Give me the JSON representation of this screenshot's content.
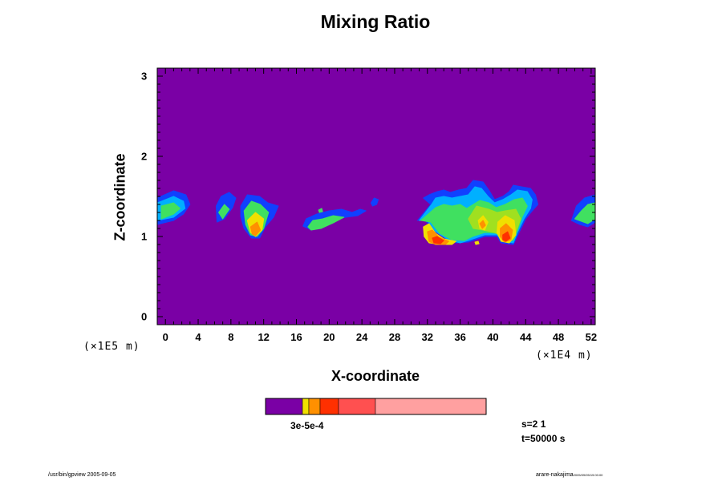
{
  "chart_data": {
    "type": "heatmap",
    "title": "Mixing Ratio",
    "xlabel": "X-coordinate",
    "ylabel": "Z-coordinate",
    "x_ticks": [
      "0",
      "4",
      "8",
      "12",
      "16",
      "20",
      "24",
      "28",
      "32",
      "36",
      "40",
      "44",
      "48",
      "52"
    ],
    "y_ticks": [
      "0",
      "1",
      "2",
      "3"
    ],
    "x_factor": "(×1E4 m)",
    "y_factor": "(×1E5 m)",
    "xlim": [
      -1,
      52.5
    ],
    "ylim": [
      -0.1,
      3.1
    ],
    "background_color": "#7a00a5",
    "colormap": [
      "#7a00a5",
      "#1040ff",
      "#00b0ff",
      "#00e0c0",
      "#40e060",
      "#a0e020",
      "#f0e000",
      "#ff9000",
      "#ff3000",
      "#ff5050",
      "#ffa0a0"
    ],
    "legend_colors": [
      "#7a00a5",
      "#f0e000",
      "#ff9000",
      "#ff3000",
      "#ff5050",
      "#ffa0a0"
    ],
    "legend_label": "3e-5e-4",
    "contours": [
      {
        "level": 1,
        "color": "#1040ff",
        "polygon": [
          [
            -1.0,
            1.48
          ],
          [
            1.0,
            1.57
          ],
          [
            2.5,
            1.52
          ],
          [
            3.0,
            1.4
          ],
          [
            2.2,
            1.28
          ],
          [
            1.0,
            1.2
          ],
          [
            -1.0,
            1.15
          ]
        ]
      },
      {
        "level": 2,
        "color": "#00b0ff",
        "polygon": [
          [
            -1.0,
            1.42
          ],
          [
            1.0,
            1.5
          ],
          [
            2.2,
            1.44
          ],
          [
            2.4,
            1.35
          ],
          [
            1.0,
            1.24
          ],
          [
            -1.0,
            1.2
          ]
        ]
      },
      {
        "level": 3,
        "color": "#40e060",
        "polygon": [
          [
            -0.5,
            1.38
          ],
          [
            1.0,
            1.42
          ],
          [
            1.8,
            1.35
          ],
          [
            1.0,
            1.28
          ],
          [
            -0.5,
            1.22
          ]
        ]
      },
      {
        "level": 1,
        "color": "#1040ff",
        "polygon": [
          [
            6.2,
            1.38
          ],
          [
            6.8,
            1.5
          ],
          [
            7.8,
            1.55
          ],
          [
            8.6,
            1.48
          ],
          [
            8.2,
            1.36
          ],
          [
            7.2,
            1.22
          ],
          [
            6.3,
            1.18
          ]
        ]
      },
      {
        "level": 3,
        "color": "#40e060",
        "polygon": [
          [
            6.5,
            1.3
          ],
          [
            7.2,
            1.4
          ],
          [
            7.8,
            1.34
          ],
          [
            7.0,
            1.22
          ]
        ]
      },
      {
        "level": 1,
        "color": "#1040ff",
        "polygon": [
          [
            9.2,
            1.38
          ],
          [
            10.0,
            1.52
          ],
          [
            11.5,
            1.5
          ],
          [
            12.5,
            1.42
          ],
          [
            13.8,
            1.38
          ],
          [
            13.2,
            1.24
          ],
          [
            12.2,
            1.12
          ],
          [
            11.5,
            0.98
          ],
          [
            10.5,
            0.98
          ],
          [
            9.6,
            1.1
          ],
          [
            9.2,
            1.25
          ]
        ]
      },
      {
        "level": 3,
        "color": "#40e060",
        "polygon": [
          [
            9.6,
            1.32
          ],
          [
            10.5,
            1.44
          ],
          [
            11.6,
            1.4
          ],
          [
            12.6,
            1.3
          ],
          [
            12.0,
            1.1
          ],
          [
            11.2,
            1.0
          ],
          [
            10.4,
            1.02
          ],
          [
            9.8,
            1.15
          ]
        ]
      },
      {
        "level": 5,
        "color": "#f0e000",
        "polygon": [
          [
            10.0,
            1.2
          ],
          [
            11.0,
            1.3
          ],
          [
            12.0,
            1.22
          ],
          [
            11.8,
            1.08
          ],
          [
            11.0,
            1.0
          ],
          [
            10.4,
            1.05
          ]
        ]
      },
      {
        "level": 6,
        "color": "#ff9000",
        "polygon": [
          [
            10.4,
            1.12
          ],
          [
            11.2,
            1.18
          ],
          [
            11.6,
            1.08
          ],
          [
            11.0,
            1.01
          ],
          [
            10.6,
            1.03
          ]
        ]
      },
      {
        "level": 1,
        "color": "#1040ff",
        "polygon": [
          [
            16.8,
            1.13
          ],
          [
            17.2,
            1.22
          ],
          [
            18.5,
            1.28
          ],
          [
            20.0,
            1.32
          ],
          [
            21.5,
            1.34
          ],
          [
            22.8,
            1.3
          ],
          [
            23.8,
            1.34
          ],
          [
            24.5,
            1.32
          ],
          [
            23.5,
            1.26
          ],
          [
            22.0,
            1.24
          ],
          [
            20.5,
            1.2
          ],
          [
            19.0,
            1.12
          ],
          [
            17.8,
            1.08
          ]
        ]
      },
      {
        "level": 3,
        "color": "#40e060",
        "polygon": [
          [
            17.4,
            1.12
          ],
          [
            18.0,
            1.2
          ],
          [
            19.2,
            1.22
          ],
          [
            20.5,
            1.26
          ],
          [
            21.8,
            1.24
          ],
          [
            20.5,
            1.17
          ],
          [
            19.0,
            1.1
          ],
          [
            17.8,
            1.08
          ]
        ]
      },
      {
        "level": 1,
        "color": "#1040ff",
        "polygon": [
          [
            30.8,
            1.2
          ],
          [
            31.6,
            1.22
          ],
          [
            32.5,
            1.1
          ],
          [
            34.0,
            1.0
          ],
          [
            35.5,
            0.92
          ],
          [
            37.0,
            0.93
          ],
          [
            39.0,
            1.0
          ],
          [
            40.5,
            1.0
          ],
          [
            41.0,
            0.92
          ],
          [
            42.5,
            0.9
          ],
          [
            43.2,
            1.05
          ],
          [
            44.0,
            1.22
          ],
          [
            44.8,
            1.32
          ],
          [
            45.5,
            1.4
          ],
          [
            45.2,
            1.52
          ],
          [
            44.6,
            1.6
          ],
          [
            43.5,
            1.62
          ],
          [
            42.5,
            1.64
          ],
          [
            42.0,
            1.56
          ],
          [
            41.2,
            1.5
          ],
          [
            40.2,
            1.46
          ],
          [
            39.5,
            1.58
          ],
          [
            38.8,
            1.68
          ],
          [
            37.6,
            1.7
          ],
          [
            36.8,
            1.6
          ],
          [
            35.8,
            1.58
          ],
          [
            34.8,
            1.55
          ],
          [
            34.0,
            1.58
          ],
          [
            33.2,
            1.56
          ],
          [
            32.2,
            1.52
          ],
          [
            31.5,
            1.48
          ],
          [
            32.4,
            1.4
          ],
          [
            31.6,
            1.3
          ]
        ]
      },
      {
        "level": 2,
        "color": "#00b0ff",
        "polygon": [
          [
            31.0,
            1.2
          ],
          [
            32.0,
            1.2
          ],
          [
            33.0,
            1.06
          ],
          [
            34.5,
            0.96
          ],
          [
            36.0,
            0.92
          ],
          [
            37.0,
            0.95
          ],
          [
            39.0,
            1.02
          ],
          [
            40.5,
            1.02
          ],
          [
            41.2,
            0.94
          ],
          [
            42.5,
            0.92
          ],
          [
            43.0,
            1.05
          ],
          [
            43.8,
            1.22
          ],
          [
            44.6,
            1.35
          ],
          [
            44.8,
            1.46
          ],
          [
            44.2,
            1.56
          ],
          [
            43.0,
            1.58
          ],
          [
            42.2,
            1.52
          ],
          [
            41.2,
            1.46
          ],
          [
            40.2,
            1.42
          ],
          [
            39.4,
            1.5
          ],
          [
            38.6,
            1.6
          ],
          [
            37.8,
            1.62
          ],
          [
            37.0,
            1.52
          ],
          [
            36.0,
            1.5
          ],
          [
            35.0,
            1.48
          ],
          [
            34.0,
            1.5
          ],
          [
            33.0,
            1.48
          ],
          [
            32.5,
            1.4
          ]
        ]
      },
      {
        "level": 3,
        "color": "#40e060",
        "polygon": [
          [
            31.2,
            1.2
          ],
          [
            32.4,
            1.18
          ],
          [
            33.5,
            1.04
          ],
          [
            35.0,
            0.96
          ],
          [
            36.5,
            0.95
          ],
          [
            37.5,
            1.0
          ],
          [
            39.0,
            1.05
          ],
          [
            40.5,
            1.04
          ],
          [
            41.4,
            0.96
          ],
          [
            42.5,
            0.95
          ],
          [
            43.0,
            1.08
          ],
          [
            43.6,
            1.25
          ],
          [
            44.2,
            1.38
          ],
          [
            43.6,
            1.48
          ],
          [
            42.6,
            1.46
          ],
          [
            41.5,
            1.4
          ],
          [
            40.4,
            1.36
          ],
          [
            39.5,
            1.42
          ],
          [
            38.4,
            1.45
          ],
          [
            37.6,
            1.4
          ],
          [
            36.8,
            1.35
          ],
          [
            36.0,
            1.4
          ],
          [
            35.0,
            1.38
          ],
          [
            34.0,
            1.4
          ],
          [
            33.0,
            1.36
          ]
        ]
      },
      {
        "level": 4,
        "color": "#a0e020",
        "polygon": [
          [
            37.0,
            1.22
          ],
          [
            38.0,
            1.38
          ],
          [
            39.5,
            1.34
          ],
          [
            40.5,
            1.3
          ],
          [
            41.5,
            1.32
          ],
          [
            42.8,
            1.34
          ],
          [
            43.4,
            1.22
          ],
          [
            42.8,
            1.05
          ],
          [
            41.4,
            0.98
          ],
          [
            40.2,
            1.05
          ],
          [
            38.8,
            1.08
          ],
          [
            37.6,
            1.1
          ]
        ]
      },
      {
        "level": 5,
        "color": "#f0e000",
        "polygon": [
          [
            31.5,
            1.12
          ],
          [
            32.2,
            1.16
          ],
          [
            33.0,
            1.04
          ],
          [
            34.0,
            0.97
          ],
          [
            35.5,
            0.94
          ],
          [
            35.0,
            0.9
          ],
          [
            33.5,
            0.9
          ],
          [
            32.2,
            0.92
          ],
          [
            31.6,
            1.0
          ]
        ]
      },
      {
        "level": 6,
        "color": "#ff9000",
        "polygon": [
          [
            32.0,
            1.06
          ],
          [
            32.6,
            1.08
          ],
          [
            33.4,
            0.99
          ],
          [
            34.6,
            0.94
          ],
          [
            34.2,
            0.9
          ],
          [
            33.0,
            0.9
          ],
          [
            32.2,
            0.94
          ]
        ]
      },
      {
        "level": 7,
        "color": "#ff3000",
        "polygon": [
          [
            32.6,
            0.98
          ],
          [
            33.2,
            1.0
          ],
          [
            34.0,
            0.95
          ],
          [
            33.6,
            0.91
          ],
          [
            32.8,
            0.92
          ]
        ]
      },
      {
        "level": 5,
        "color": "#f0e000",
        "polygon": [
          [
            40.6,
            1.18
          ],
          [
            41.5,
            1.26
          ],
          [
            42.6,
            1.2
          ],
          [
            42.8,
            1.02
          ],
          [
            42.0,
            0.92
          ],
          [
            41.0,
            0.94
          ],
          [
            40.5,
            1.05
          ]
        ]
      },
      {
        "level": 6,
        "color": "#ff9000",
        "polygon": [
          [
            40.9,
            1.1
          ],
          [
            41.6,
            1.16
          ],
          [
            42.4,
            1.08
          ],
          [
            42.2,
            0.96
          ],
          [
            41.4,
            0.93
          ],
          [
            40.9,
            1.0
          ]
        ]
      },
      {
        "level": 7,
        "color": "#ff3000",
        "polygon": [
          [
            41.2,
            1.02
          ],
          [
            41.8,
            1.06
          ],
          [
            42.1,
            0.98
          ],
          [
            41.6,
            0.94
          ],
          [
            41.2,
            0.96
          ]
        ]
      },
      {
        "level": 5,
        "color": "#f0e000",
        "polygon": [
          [
            38.2,
            1.2
          ],
          [
            38.8,
            1.26
          ],
          [
            39.4,
            1.18
          ],
          [
            39.0,
            1.08
          ],
          [
            38.4,
            1.1
          ]
        ]
      },
      {
        "level": 6,
        "color": "#ff9000",
        "polygon": [
          [
            38.4,
            1.16
          ],
          [
            38.8,
            1.2
          ],
          [
            39.1,
            1.14
          ],
          [
            38.7,
            1.1
          ]
        ]
      },
      {
        "level": 1,
        "color": "#1040ff",
        "polygon": [
          [
            49.6,
            1.2
          ],
          [
            50.2,
            1.38
          ],
          [
            51.2,
            1.48
          ],
          [
            52.5,
            1.52
          ],
          [
            52.5,
            1.18
          ],
          [
            51.6,
            1.12
          ],
          [
            50.6,
            1.15
          ]
        ]
      },
      {
        "level": 3,
        "color": "#40e060",
        "polygon": [
          [
            50.0,
            1.22
          ],
          [
            50.8,
            1.32
          ],
          [
            51.6,
            1.4
          ],
          [
            52.5,
            1.42
          ],
          [
            52.5,
            1.22
          ],
          [
            51.6,
            1.16
          ]
        ]
      },
      {
        "level": 1,
        "color": "#1040ff",
        "polygon": [
          [
            25.1,
            1.42
          ],
          [
            25.5,
            1.48
          ],
          [
            26.0,
            1.46
          ],
          [
            25.8,
            1.4
          ],
          [
            25.3,
            1.38
          ]
        ]
      },
      {
        "level": 3,
        "color": "#40e060",
        "polygon": [
          [
            18.7,
            1.33
          ],
          [
            19.1,
            1.35
          ],
          [
            19.2,
            1.31
          ],
          [
            18.8,
            1.3
          ]
        ]
      },
      {
        "level": 5,
        "color": "#f0e000",
        "polygon": [
          [
            37.8,
            0.93
          ],
          [
            38.2,
            0.94
          ],
          [
            38.3,
            0.91
          ],
          [
            37.9,
            0.9
          ]
        ]
      }
    ]
  },
  "legend": {
    "colors": [
      "#7a00a5",
      "#f0e000",
      "#ff9000",
      "#ff3000",
      "#ff5050",
      "#ffa0a0"
    ],
    "label": "3e-5e-4"
  },
  "info": {
    "s": "s=2 1",
    "t": "t=50000 s"
  },
  "footer": {
    "left": "/usr/bin/gpview 2005-09-05",
    "right": "arare-nakajima",
    "right_small": "2005/09/05/19:00:00"
  }
}
